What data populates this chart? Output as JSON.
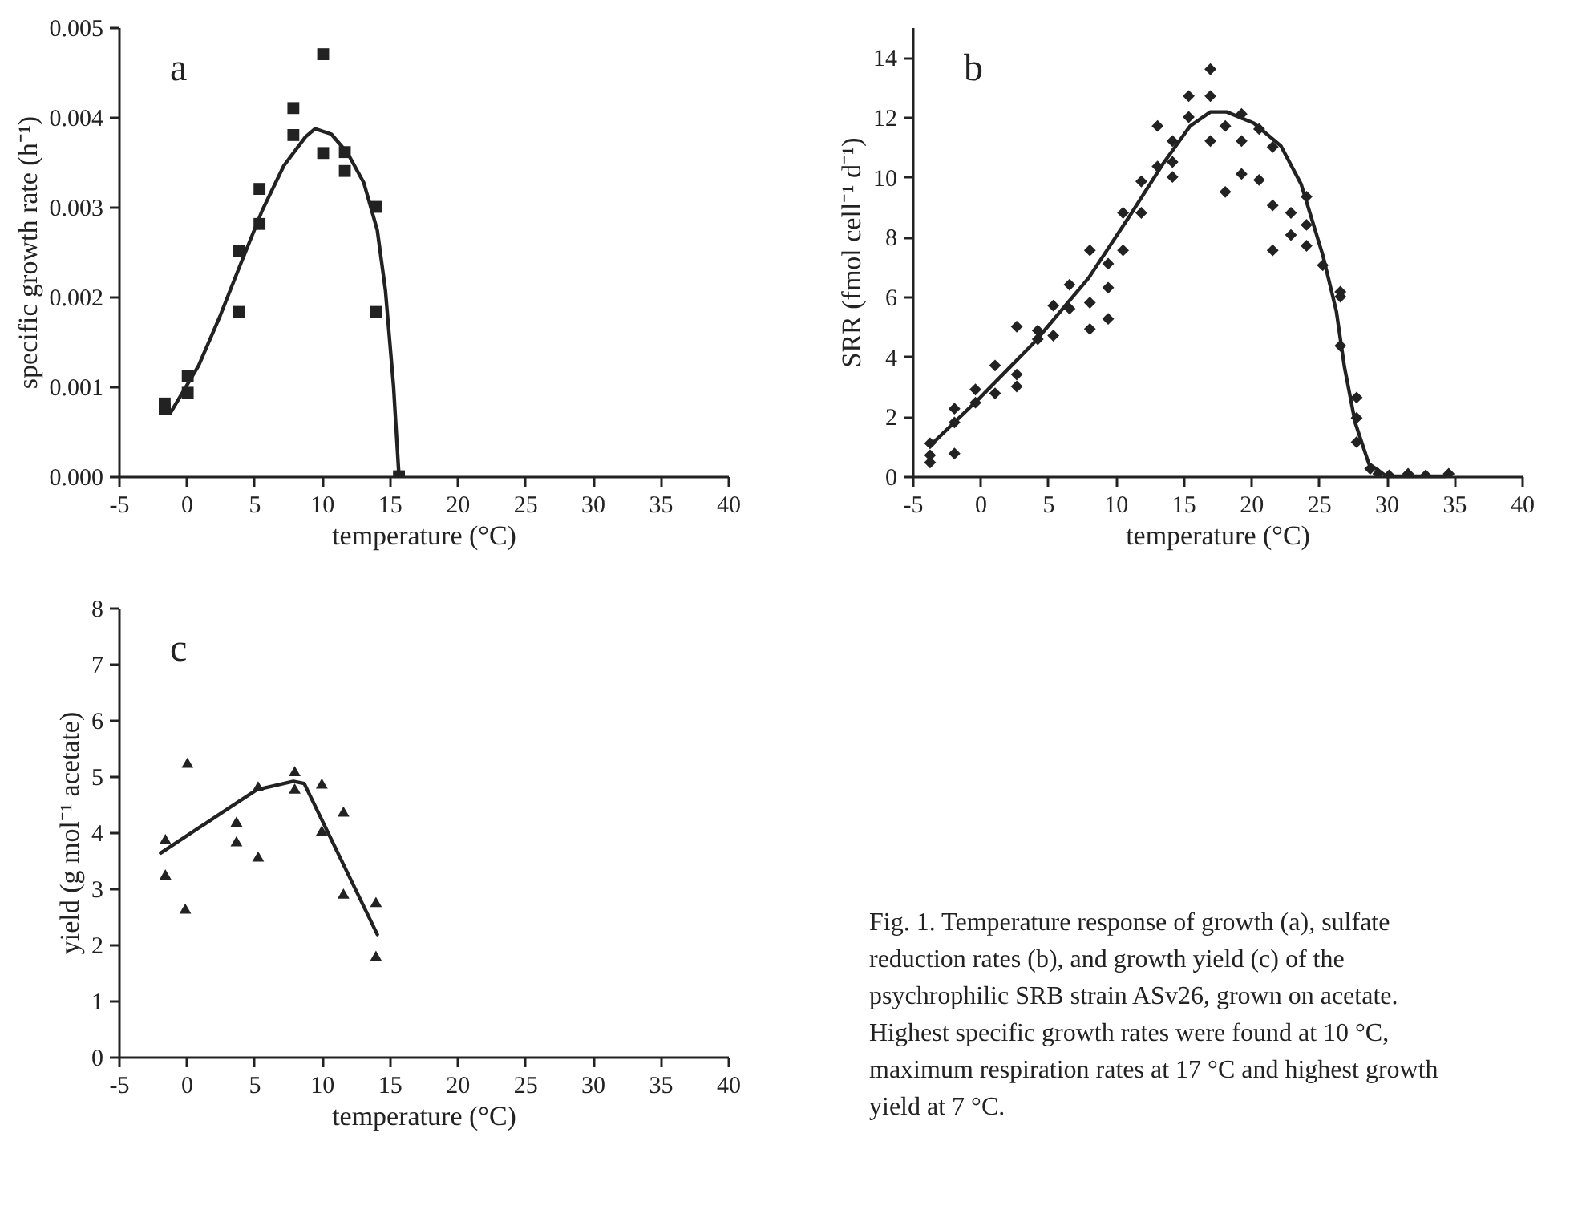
{
  "chart_data": [
    {
      "type": "scatter",
      "xlabel": "temperature (°C)",
      "ylabel": "specific growth rate (h⁻¹)",
      "annotations": [
        "a"
      ],
      "xlim": [
        -5,
        40
      ],
      "xticks": [
        -5,
        0,
        5,
        10,
        15,
        20,
        25,
        30,
        35,
        40
      ],
      "ylim": [
        0,
        0.005
      ],
      "yticks": [
        {
          "value": 0,
          "label": "0.000"
        },
        {
          "value": 0.001,
          "label": "0.001"
        },
        {
          "value": 0.002,
          "label": "0.002"
        },
        {
          "value": 0.003,
          "label": "0.003"
        },
        {
          "value": 0.004,
          "label": "0.004"
        },
        {
          "value": 0.005,
          "label": "0.005"
        }
      ],
      "series": [
        {
          "type": "scatter",
          "marker": "square",
          "color": "#222222",
          "x": [
            -1.6,
            -1.6,
            0.1,
            0.1,
            3.9,
            3.9,
            5.4,
            5.4,
            7.9,
            7.9,
            10.1,
            10.1,
            11.7,
            11.7,
            14.0,
            14.0,
            15.7
          ],
          "values": [
            0.00081,
            0.00075,
            0.00112,
            0.00093,
            0.00183,
            0.00251,
            0.00281,
            0.0032,
            0.0038,
            0.0041,
            0.0047,
            0.0036,
            0.00361,
            0.0034,
            0.003,
            0.00183,
            0
          ]
        },
        {
          "type": "line",
          "marker": "none",
          "line_style": "solid",
          "color": "#222222",
          "x": [
            -1.2,
            0.9,
            2.5,
            4.1,
            5.6,
            7.2,
            8.8,
            9.5,
            10.7,
            11.9,
            13.1,
            14.1,
            14.7,
            15.3,
            15.7
          ],
          "values": [
            0.0007,
            0.00123,
            0.00179,
            0.0024,
            0.00296,
            0.00346,
            0.00378,
            0.00387,
            0.00381,
            0.0036,
            0.00327,
            0.00274,
            0.00207,
            0.001,
            0
          ]
        }
      ]
    },
    {
      "type": "scatter",
      "xlabel": "temperature (°C)",
      "ylabel": "SRR (fmol cell⁻¹ d⁻¹)",
      "annotations": [
        "b"
      ],
      "xlim": [
        -5,
        40
      ],
      "xticks": [
        -5,
        0,
        5,
        10,
        15,
        20,
        25,
        30,
        35,
        40
      ],
      "ylim": [
        0,
        15
      ],
      "yticks": [
        0,
        2,
        4,
        6,
        8,
        10,
        12,
        14
      ],
      "series": [
        {
          "type": "scatter",
          "marker": "diamond",
          "color": "#222222",
          "x": [
            -3.7,
            -3.7,
            -3.7,
            -1.9,
            -1.9,
            -1.9,
            -0.35,
            -0.35,
            1.1,
            1.1,
            2.7,
            2.7,
            2.7,
            4.25,
            4.25,
            5.4,
            5.4,
            6.6,
            6.6,
            8.1,
            8.1,
            8.1,
            9.45,
            9.45,
            9.45,
            10.55,
            10.55,
            11.9,
            11.9,
            13.1,
            13.1,
            14.2,
            14.2,
            14.2,
            15.4,
            15.4,
            17.0,
            17.0,
            17.0,
            18.1,
            18.1,
            19.3,
            19.3,
            19.3,
            20.6,
            20.6,
            21.6,
            21.6,
            21.6,
            22.95,
            22.95,
            24.1,
            24.1,
            24.1,
            25.3,
            26.6,
            26.6,
            26.6,
            27.8,
            27.8,
            27.8,
            28.8,
            29.4,
            30.2,
            31.6,
            32.9,
            34.6
          ],
          "values": [
            1.1,
            0.7,
            0.46,
            2.26,
            1.8,
            0.76,
            2.9,
            2.46,
            3.7,
            2.77,
            5.0,
            3.4,
            3.0,
            4.87,
            4.58,
            5.7,
            4.7,
            6.4,
            5.6,
            7.55,
            5.8,
            4.92,
            7.1,
            6.3,
            5.26,
            8.8,
            7.55,
            9.85,
            8.8,
            11.7,
            10.35,
            11.2,
            10.5,
            10.0,
            12.7,
            12.0,
            13.6,
            12.7,
            11.2,
            11.7,
            9.5,
            12.1,
            11.2,
            10.1,
            11.6,
            9.9,
            11.0,
            9.05,
            7.55,
            8.8,
            8.06,
            9.34,
            8.4,
            7.7,
            7.05,
            6.16,
            6.0,
            4.36,
            2.63,
            1.95,
            1.14,
            0.25,
            0.08,
            0.03,
            0.08,
            0.03,
            0.08
          ]
        },
        {
          "type": "line",
          "marker": "none",
          "line_style": "solid",
          "color": "#222222",
          "x": [
            -3.7,
            0,
            4.05,
            8.0,
            11.1,
            13.5,
            15.5,
            17.0,
            18.2,
            20.2,
            22.2,
            23.7,
            25.3,
            26.3,
            26.9,
            27.7,
            28.7,
            30.0,
            34.4
          ],
          "values": [
            1.02,
            2.63,
            4.5,
            6.62,
            8.74,
            10.44,
            11.7,
            12.17,
            12.17,
            11.8,
            11.04,
            9.76,
            7.39,
            5.52,
            3.65,
            1.78,
            0.42,
            0,
            0
          ]
        }
      ]
    },
    {
      "type": "scatter",
      "xlabel": "temperature (°C)",
      "ylabel": "yield (g mol⁻¹ acetate)",
      "annotations": [
        "c",
        "Fig. 1. Temperature response of growth (a), sulfate reduction rates (b), and growth yield (c) of the psychrophilic SRB strain ASv26, grown on acetate. Highest specific growth rates were found at 10 °C, maximum respiration rates at 17 °C and highest growth yield at 7 °C."
      ],
      "xlim": [
        -5,
        40
      ],
      "xticks": [
        -5,
        0,
        5,
        10,
        15,
        20,
        25,
        30,
        35,
        40
      ],
      "ylim": [
        0,
        8
      ],
      "yticks": [
        0,
        1,
        2,
        3,
        4,
        5,
        6,
        7,
        8
      ],
      "series": [
        {
          "type": "scatter",
          "marker": "triangle",
          "color": "#222222",
          "x": [
            -1.55,
            -1.55,
            0.08,
            -0.08,
            3.7,
            3.7,
            5.3,
            5.3,
            8.0,
            8.0,
            10.0,
            10.0,
            11.6,
            11.6,
            14.0,
            14.0
          ],
          "values": [
            3.88,
            3.25,
            5.24,
            2.64,
            4.19,
            3.84,
            3.57,
            4.82,
            5.09,
            4.78,
            4.87,
            4.03,
            4.37,
            2.91,
            2.76,
            1.8
          ]
        },
        {
          "type": "line",
          "marker": "none",
          "line_style": "solid",
          "color": "#222222",
          "x": [
            -1.9,
            5.2,
            7.9,
            8.7,
            14.1
          ],
          "values": [
            3.63,
            4.76,
            4.91,
            4.87,
            2.18
          ]
        }
      ]
    }
  ]
}
